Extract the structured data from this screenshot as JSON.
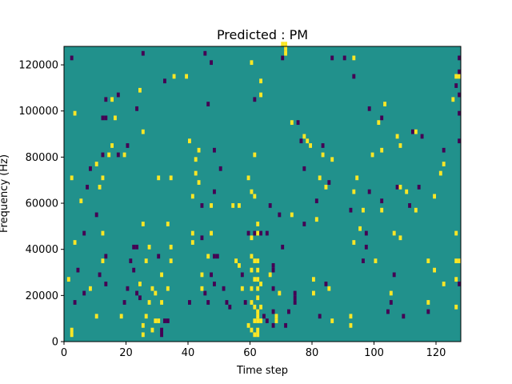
{
  "chart_data": {
    "type": "heatmap",
    "title": "Predicted : PM",
    "xlabel": "Time step",
    "ylabel": "Frequency (Hz)",
    "xlim": [
      0,
      128
    ],
    "ylim": [
      0,
      128000
    ],
    "x_ticks": [
      0,
      20,
      40,
      60,
      80,
      100,
      120
    ],
    "y_ticks": [
      0,
      20000,
      40000,
      60000,
      80000,
      100000,
      120000
    ],
    "y_tick_labels": [
      "0",
      "20000",
      "40000",
      "60000",
      "80000",
      "100000",
      "120000"
    ],
    "colors": {
      "background": "#21918c",
      "high": "#fde725",
      "low": "#440154"
    },
    "value_levels": {
      "background": 0.5,
      "high": 1,
      "low": 0
    },
    "cell_height": 2000,
    "cells": [
      [
        2,
        2000,
        1
      ],
      [
        2,
        4000,
        1
      ],
      [
        3,
        16000,
        0
      ],
      [
        1,
        26000,
        1
      ],
      [
        4,
        30000,
        0
      ],
      [
        3,
        42000,
        1
      ],
      [
        6,
        46000,
        0
      ],
      [
        5,
        60000,
        1
      ],
      [
        7,
        66000,
        0
      ],
      [
        2,
        70000,
        1
      ],
      [
        8,
        74000,
        0
      ],
      [
        3,
        98000,
        1
      ],
      [
        2,
        122000,
        0
      ],
      [
        6,
        20000,
        0
      ],
      [
        8,
        22000,
        1
      ],
      [
        10,
        10000,
        1
      ],
      [
        11,
        28000,
        0
      ],
      [
        12,
        34000,
        1
      ],
      [
        13,
        24000,
        0
      ],
      [
        12,
        46000,
        1
      ],
      [
        13,
        36000,
        0
      ],
      [
        10,
        54000,
        0
      ],
      [
        11,
        66000,
        1
      ],
      [
        12,
        70000,
        1
      ],
      [
        10,
        76000,
        1
      ],
      [
        12,
        80000,
        0
      ],
      [
        12,
        96000,
        0
      ],
      [
        13,
        96000,
        0
      ],
      [
        13,
        104000,
        0
      ],
      [
        15,
        104000,
        1
      ],
      [
        14,
        80000,
        1
      ],
      [
        16,
        96000,
        1
      ],
      [
        15,
        84000,
        1
      ],
      [
        17,
        80000,
        0
      ],
      [
        17,
        106000,
        0
      ],
      [
        19,
        80000,
        1
      ],
      [
        20,
        84000,
        0
      ],
      [
        18,
        10000,
        1
      ],
      [
        19,
        16000,
        0
      ],
      [
        20,
        22000,
        0
      ],
      [
        21,
        34000,
        0
      ],
      [
        22,
        30000,
        0
      ],
      [
        23,
        20000,
        0
      ],
      [
        22,
        40000,
        0
      ],
      [
        23,
        40000,
        0
      ],
      [
        24,
        18000,
        0
      ],
      [
        24,
        24000,
        1
      ],
      [
        23,
        100000,
        0
      ],
      [
        25,
        90000,
        1
      ],
      [
        24,
        108000,
        1
      ],
      [
        25,
        124000,
        0
      ],
      [
        26,
        34000,
        1
      ],
      [
        25,
        50000,
        1
      ],
      [
        26,
        10000,
        1
      ],
      [
        25,
        6000,
        1
      ],
      [
        25,
        2000,
        1
      ],
      [
        27,
        16000,
        1
      ],
      [
        28,
        22000,
        1
      ],
      [
        27,
        40000,
        1
      ],
      [
        29,
        20000,
        1
      ],
      [
        28,
        4000,
        1
      ],
      [
        29,
        8000,
        1
      ],
      [
        30,
        8000,
        1
      ],
      [
        31,
        4000,
        0
      ],
      [
        31,
        2000,
        0
      ],
      [
        32,
        8000,
        0
      ],
      [
        33,
        8000,
        0
      ],
      [
        30,
        36000,
        0
      ],
      [
        30,
        70000,
        1
      ],
      [
        31,
        28000,
        1
      ],
      [
        31,
        16000,
        1
      ],
      [
        33,
        22000,
        1
      ],
      [
        34,
        40000,
        1
      ],
      [
        33,
        50000,
        1
      ],
      [
        34,
        70000,
        1
      ],
      [
        34,
        34000,
        1
      ],
      [
        32,
        112000,
        0
      ],
      [
        35,
        114000,
        1
      ],
      [
        39,
        114000,
        1
      ],
      [
        40,
        16000,
        0
      ],
      [
        40,
        86000,
        1
      ],
      [
        41,
        62000,
        1
      ],
      [
        41,
        46000,
        1
      ],
      [
        41,
        42000,
        1
      ],
      [
        42,
        72000,
        1
      ],
      [
        42,
        78000,
        1
      ],
      [
        43,
        82000,
        1
      ],
      [
        43,
        68000,
        1
      ],
      [
        44,
        28000,
        1
      ],
      [
        44,
        22000,
        1
      ],
      [
        44,
        44000,
        0
      ],
      [
        44,
        58000,
        0
      ],
      [
        45,
        20000,
        0
      ],
      [
        46,
        16000,
        0
      ],
      [
        46,
        36000,
        1
      ],
      [
        47,
        28000,
        0
      ],
      [
        46,
        102000,
        0
      ],
      [
        45,
        124000,
        0
      ],
      [
        48,
        24000,
        0
      ],
      [
        47,
        46000,
        1
      ],
      [
        48,
        36000,
        0
      ],
      [
        48,
        64000,
        0
      ],
      [
        47,
        120000,
        0
      ],
      [
        47,
        58000,
        1
      ],
      [
        48,
        82000,
        0
      ],
      [
        49,
        36000,
        0
      ],
      [
        50,
        74000,
        0
      ],
      [
        51,
        22000,
        0
      ],
      [
        52,
        16000,
        0
      ],
      [
        53,
        14000,
        0
      ],
      [
        54,
        58000,
        1
      ],
      [
        55,
        34000,
        1
      ],
      [
        56,
        58000,
        1
      ],
      [
        56,
        32000,
        1
      ],
      [
        57,
        28000,
        0
      ],
      [
        57,
        22000,
        1
      ],
      [
        58,
        16000,
        0
      ],
      [
        59,
        6000,
        1
      ],
      [
        59,
        46000,
        0
      ],
      [
        59,
        70000,
        1
      ],
      [
        60,
        64000,
        1
      ],
      [
        60,
        30000,
        1
      ],
      [
        60,
        36000,
        1
      ],
      [
        60,
        44000,
        1
      ],
      [
        60,
        16000,
        1
      ],
      [
        60,
        22000,
        1
      ],
      [
        60,
        4000,
        1
      ],
      [
        61,
        8000,
        1
      ],
      [
        61,
        14000,
        1
      ],
      [
        61,
        26000,
        1
      ],
      [
        61,
        34000,
        1
      ],
      [
        61,
        46000,
        0
      ],
      [
        61,
        80000,
        1
      ],
      [
        61,
        62000,
        1
      ],
      [
        61,
        2000,
        1
      ],
      [
        62,
        2000,
        1
      ],
      [
        62,
        4000,
        1
      ],
      [
        62,
        8000,
        1
      ],
      [
        62,
        10000,
        1
      ],
      [
        62,
        12000,
        1
      ],
      [
        62,
        18000,
        1
      ],
      [
        62,
        22000,
        1
      ],
      [
        62,
        26000,
        1
      ],
      [
        62,
        30000,
        1
      ],
      [
        62,
        34000,
        1
      ],
      [
        62,
        46000,
        1
      ],
      [
        62,
        50000,
        1
      ],
      [
        63,
        8000,
        1
      ],
      [
        63,
        46000,
        0
      ],
      [
        63,
        14000,
        1
      ],
      [
        63,
        24000,
        1
      ],
      [
        63,
        106000,
        1
      ],
      [
        63,
        112000,
        1
      ],
      [
        60,
        120000,
        1
      ],
      [
        61,
        104000,
        0
      ],
      [
        64,
        10000,
        0
      ],
      [
        65,
        8000,
        0
      ],
      [
        65,
        46000,
        0
      ],
      [
        66,
        58000,
        0
      ],
      [
        66,
        28000,
        1
      ],
      [
        67,
        22000,
        0
      ],
      [
        67,
        32000,
        0
      ],
      [
        67,
        12000,
        0
      ],
      [
        67,
        6000,
        0
      ],
      [
        67,
        30000,
        0
      ],
      [
        68,
        8000,
        1
      ],
      [
        68,
        10000,
        1
      ],
      [
        69,
        20000,
        1
      ],
      [
        69,
        54000,
        0
      ],
      [
        70,
        40000,
        0
      ],
      [
        70,
        122000,
        0
      ],
      [
        70,
        128000,
        1
      ],
      [
        71,
        124000,
        1
      ],
      [
        71,
        126000,
        1
      ],
      [
        71,
        128000,
        1
      ],
      [
        73,
        94000,
        1
      ],
      [
        73,
        54000,
        1
      ],
      [
        74,
        18000,
        0
      ],
      [
        74,
        16000,
        0
      ],
      [
        74,
        20000,
        0
      ],
      [
        71,
        6000,
        0
      ],
      [
        72,
        12000,
        0
      ],
      [
        75,
        94000,
        0
      ],
      [
        76,
        86000,
        0
      ],
      [
        77,
        88000,
        1
      ],
      [
        77,
        50000,
        0
      ],
      [
        77,
        74000,
        0
      ],
      [
        78,
        86000,
        1
      ],
      [
        79,
        84000,
        1
      ],
      [
        80,
        20000,
        1
      ],
      [
        80,
        26000,
        1
      ],
      [
        81,
        52000,
        1
      ],
      [
        81,
        60000,
        0
      ],
      [
        82,
        10000,
        0
      ],
      [
        82,
        70000,
        1
      ],
      [
        83,
        84000,
        0
      ],
      [
        83,
        80000,
        1
      ],
      [
        84,
        24000,
        0
      ],
      [
        84,
        66000,
        1
      ],
      [
        85,
        68000,
        0
      ],
      [
        85,
        22000,
        1
      ],
      [
        86,
        8000,
        1
      ],
      [
        86,
        122000,
        0
      ],
      [
        86,
        78000,
        1
      ],
      [
        90,
        122000,
        0
      ],
      [
        92,
        10000,
        1
      ],
      [
        92,
        6000,
        1
      ],
      [
        93,
        42000,
        1
      ],
      [
        93,
        64000,
        1
      ],
      [
        92,
        56000,
        0
      ],
      [
        93,
        122000,
        1
      ],
      [
        93,
        114000,
        0
      ],
      [
        94,
        70000,
        1
      ],
      [
        95,
        48000,
        1
      ],
      [
        96,
        56000,
        1
      ],
      [
        96,
        34000,
        0
      ],
      [
        97,
        46000,
        0
      ],
      [
        97,
        40000,
        0
      ],
      [
        98,
        64000,
        0
      ],
      [
        98,
        100000,
        0
      ],
      [
        99,
        80000,
        1
      ],
      [
        100,
        34000,
        1
      ],
      [
        101,
        94000,
        1
      ],
      [
        102,
        60000,
        0
      ],
      [
        102,
        56000,
        1
      ],
      [
        102,
        82000,
        1
      ],
      [
        102,
        96000,
        0
      ],
      [
        103,
        102000,
        1
      ],
      [
        104,
        12000,
        0
      ],
      [
        105,
        16000,
        0
      ],
      [
        105,
        20000,
        1
      ],
      [
        106,
        28000,
        0
      ],
      [
        106,
        46000,
        1
      ],
      [
        107,
        66000,
        0
      ],
      [
        107,
        88000,
        1
      ],
      [
        108,
        44000,
        1
      ],
      [
        108,
        66000,
        1
      ],
      [
        108,
        84000,
        1
      ],
      [
        109,
        10000,
        0
      ],
      [
        110,
        64000,
        1
      ],
      [
        111,
        58000,
        0
      ],
      [
        112,
        90000,
        0
      ],
      [
        113,
        90000,
        1
      ],
      [
        113,
        56000,
        1
      ],
      [
        114,
        66000,
        0
      ],
      [
        115,
        88000,
        0
      ],
      [
        117,
        12000,
        0
      ],
      [
        117,
        34000,
        1
      ],
      [
        117,
        16000,
        1
      ],
      [
        119,
        62000,
        1
      ],
      [
        121,
        72000,
        1
      ],
      [
        122,
        76000,
        1
      ],
      [
        122,
        24000,
        1
      ],
      [
        122,
        82000,
        0
      ],
      [
        125,
        104000,
        1
      ],
      [
        126,
        34000,
        1
      ],
      [
        126,
        26000,
        1
      ],
      [
        126,
        14000,
        1
      ],
      [
        126,
        110000,
        0
      ],
      [
        126,
        114000,
        1
      ],
      [
        127,
        24000,
        0
      ],
      [
        127,
        34000,
        1
      ],
      [
        127,
        98000,
        0
      ],
      [
        127,
        106000,
        0
      ],
      [
        127,
        114000,
        1
      ],
      [
        127,
        116000,
        0
      ],
      [
        127,
        122000,
        0
      ],
      [
        127,
        86000,
        0
      ],
      [
        126,
        46000,
        1
      ],
      [
        119,
        30000,
        1
      ]
    ]
  }
}
